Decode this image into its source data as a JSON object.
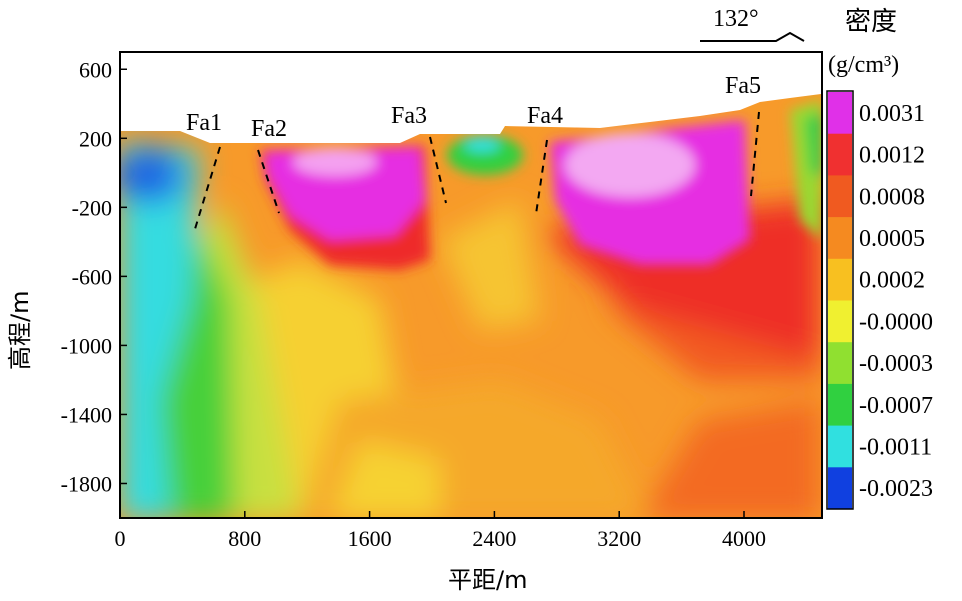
{
  "chart_data": {
    "type": "heatmap",
    "xlabel": "平距/m",
    "ylabel": "高程/m",
    "xlim": [
      0,
      4500
    ],
    "ylim": [
      -2000,
      700
    ],
    "x_ticks": [
      "0",
      "800",
      "1600",
      "2400",
      "3200",
      "4000"
    ],
    "y_ticks": [
      "600",
      "200",
      "-200",
      "-600",
      "-1000",
      "-1400",
      "-1800"
    ],
    "azimuth": "132°",
    "colorbar": {
      "title": "密度",
      "unit": "(g/cm³)",
      "labels": [
        "0.0031",
        "0.0012",
        "0.0008",
        "0.0005",
        "0.0002",
        "-0.0000",
        "-0.0003",
        "-0.0007",
        "-0.0011",
        "-0.0023"
      ],
      "colors": [
        "#e030e8",
        "#f03030",
        "#f05a20",
        "#f58a20",
        "#f8c020",
        "#f0f030",
        "#90e030",
        "#30d040",
        "#30e0e0",
        "#1040e0"
      ]
    },
    "faults": [
      {
        "name": "Fa1",
        "top_x": 650,
        "bottom_x": 480,
        "top_y": 150,
        "bottom_y": -300
      },
      {
        "name": "Fa2",
        "top_x": 900,
        "bottom_x": 1030,
        "top_y": 120,
        "bottom_y": -240
      },
      {
        "name": "Fa3",
        "top_x": 1970,
        "bottom_x": 2100,
        "top_y": 200,
        "bottom_y": -160
      },
      {
        "name": "Fa4",
        "top_x": 2740,
        "bottom_x": 2660,
        "top_y": 180,
        "bottom_y": -240
      },
      {
        "name": "Fa5",
        "top_x": 4110,
        "bottom_x": 4050,
        "top_y": 380,
        "bottom_y": -100
      }
    ]
  }
}
